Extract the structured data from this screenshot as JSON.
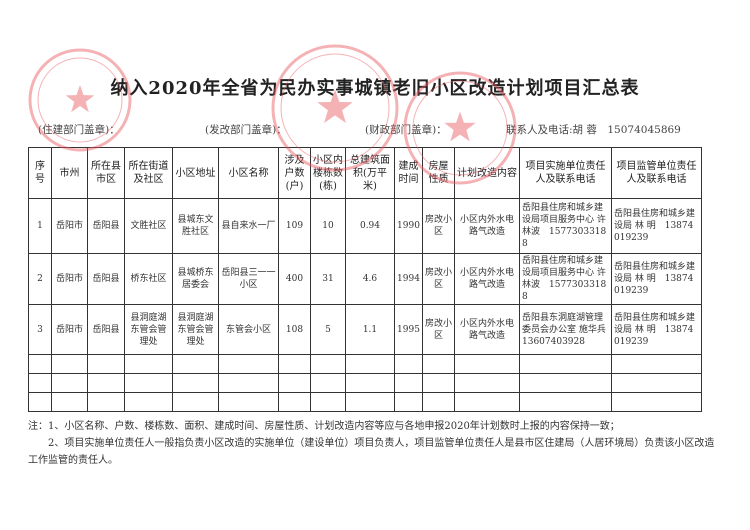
{
  "title": "纳入2020年全省为民办实事城镇老旧小区改造计划项目汇总表",
  "stamps": {
    "housing": "(住建部门盖章)：",
    "reform": "(发改部门盖章)：",
    "finance": "(财政部门盖章)：",
    "contact": "联系人及电话:胡 蓉　15074045869"
  },
  "seal_text": [
    "岳阳县住房和城乡建设局",
    "岳阳县发展和改革局",
    "岳阳县财政局"
  ],
  "seal_color": "#e8565c",
  "headers": [
    "序号",
    "市州",
    "所在县市区",
    "所在街道及社区",
    "小区地址",
    "小区名称",
    "涉及户数(户)",
    "小区内楼栋数(栋)",
    "总建筑面积(万平米)",
    "建成时间",
    "房屋性质",
    "计划改造内容",
    "项目实施单位责任人及联系电话",
    "项目监管单位责任人及联系电话"
  ],
  "rows": [
    [
      "1",
      "岳阳市",
      "岳阳县",
      "文胜社区",
      "县城东文胜社区",
      "县自来水一厂",
      "109",
      "10",
      "0.94",
      "1990",
      "房改小区",
      "小区内外水电路气改造",
      "岳阳县住房和城乡建设局项目服务中心 许林波　15773033188",
      "岳阳县住房和城乡建设局 林 明　13874019239"
    ],
    [
      "2",
      "岳阳市",
      "岳阳县",
      "桥东社区",
      "县城桥东居委会",
      "岳阳县三一一小区",
      "400",
      "31",
      "4.6",
      "1994",
      "房改小区",
      "小区内外水电路气改造",
      "岳阳县住房和城乡建设局项目服务中心 许林波　15773033188",
      "岳阳县住房和城乡建设局 林 明　13874019239"
    ],
    [
      "3",
      "岳阳市",
      "岳阳县",
      "县洞庭湖东管会管理处",
      "县洞庭湖东管会管理处",
      "东管会小区",
      "108",
      "5",
      "1.1",
      "1995",
      "房改小区",
      "小区内外水电路气改造",
      "岳阳县东洞庭湖管理委员会办公室 施华兵　13607403928",
      "岳阳县住房和城乡建设局 林 明　13874019239"
    ]
  ],
  "empty_rows": 3,
  "notes": [
    "注：1、小区名称、户数、楼栋数、面积、建成时间、房屋性质、计划改造内容等应与各地申报2020年计划数时上报的内容保持一致；",
    "2、项目实施单位责任人一般指负责小区改造的实施单位（建设单位）项目负责人，项目监管单位责任人是县市区住建局（人居环境局）负责该小区改造工作监管的责任人。"
  ]
}
